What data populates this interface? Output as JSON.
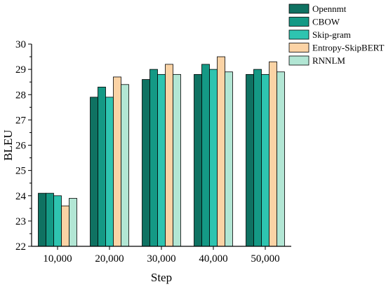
{
  "chart_data": {
    "type": "bar",
    "xlabel": "Step",
    "ylabel": "BLEU",
    "ylim": [
      22,
      30
    ],
    "yticks": [
      "22",
      "23",
      "24",
      "25",
      "26",
      "27",
      "28",
      "29",
      "30"
    ],
    "categories": [
      "10,000",
      "20,000",
      "30,000",
      "40,000",
      "50,000"
    ],
    "grid": false,
    "legend_position": "top-right",
    "series": [
      {
        "name": "Opennmt",
        "color": "#0f7262",
        "values": [
          24.1,
          27.9,
          28.6,
          28.8,
          28.8
        ]
      },
      {
        "name": "CBOW",
        "color": "#149985",
        "values": [
          24.1,
          28.3,
          29.0,
          29.2,
          29.0
        ]
      },
      {
        "name": "Skip-gram",
        "color": "#2ec4b0",
        "values": [
          24.0,
          27.9,
          28.8,
          29.0,
          28.8
        ]
      },
      {
        "name": "Entropy-SkipBERT",
        "color": "#fbd3a5",
        "values": [
          23.6,
          28.7,
          29.2,
          29.5,
          29.3
        ]
      },
      {
        "name": "RNNLM",
        "color": "#b2e6d4",
        "values": [
          23.9,
          28.4,
          28.8,
          28.9,
          28.9
        ]
      }
    ]
  }
}
